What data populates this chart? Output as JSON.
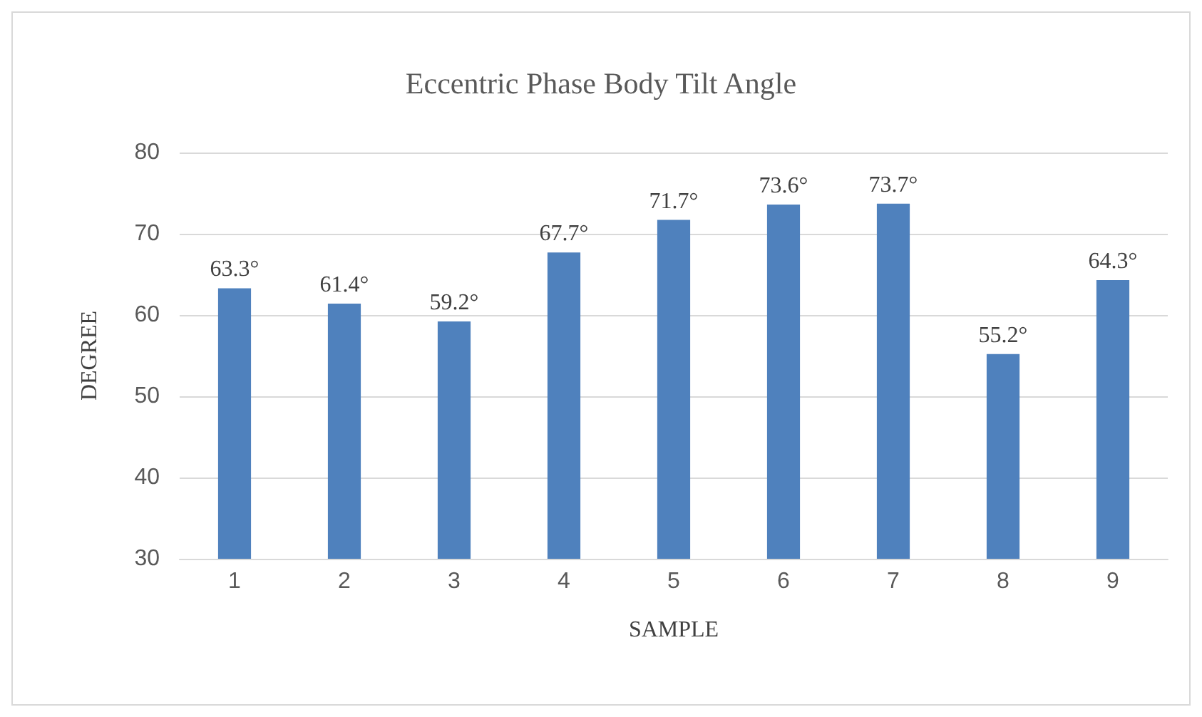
{
  "chart_data": {
    "type": "bar",
    "title": "Eccentric Phase Body Tilt Angle",
    "xlabel": "SAMPLE",
    "ylabel": "DEGREE",
    "categories": [
      "1",
      "2",
      "3",
      "4",
      "5",
      "6",
      "7",
      "8",
      "9"
    ],
    "values": [
      63.3,
      61.4,
      59.2,
      67.7,
      71.7,
      73.6,
      73.7,
      55.2,
      64.3
    ],
    "value_labels": [
      "63.3°",
      "61.4°",
      "59.2°",
      "67.7°",
      "71.7°",
      "73.6°",
      "73.7°",
      "55.2°",
      "64.3°"
    ],
    "color": "#4f81bd",
    "ylim": [
      30,
      80
    ],
    "yticks": [
      30,
      40,
      50,
      60,
      70,
      80
    ],
    "grid": "y"
  }
}
